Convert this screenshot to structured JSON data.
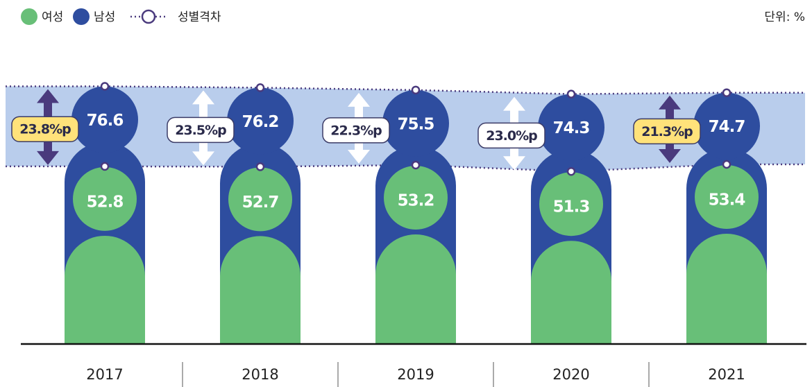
{
  "chart_data": {
    "type": "pictogram",
    "unit_note": "단위: %",
    "categories": [
      "2017",
      "2018",
      "2019",
      "2020",
      "2021"
    ],
    "series": [
      {
        "name": "여성",
        "color": "#68bf78",
        "values": [
          52.8,
          52.7,
          53.2,
          51.3,
          53.4
        ]
      },
      {
        "name": "남성",
        "color": "#2e4d9f",
        "values": [
          76.6,
          76.2,
          75.5,
          74.3,
          74.7
        ]
      }
    ],
    "gap": {
      "name": "성별격차",
      "values": [
        23.8,
        23.5,
        22.3,
        23.0,
        21.3
      ],
      "value_labels": [
        "23.8%p",
        "23.5%p",
        "22.3%p",
        "23.0%p",
        "21.3%p"
      ],
      "highlight": [
        true,
        false,
        false,
        false,
        true
      ],
      "highlight_color": "#ffe27a",
      "arrow_color": "#4a3a7d",
      "band_color": "#b9cdec",
      "line_color": "#4a3a7d"
    }
  }
}
